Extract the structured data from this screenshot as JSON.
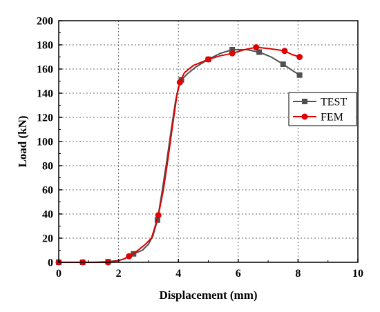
{
  "chart_data": {
    "type": "line",
    "xlabel": "Displacement (mm)",
    "ylabel": "Load (kN)",
    "xlim": [
      0,
      10
    ],
    "ylim": [
      0,
      200
    ],
    "x_ticks": [
      0,
      2,
      4,
      6,
      8,
      10
    ],
    "y_ticks": [
      0,
      20,
      40,
      60,
      80,
      100,
      120,
      140,
      160,
      180,
      200
    ],
    "grid": "dotted",
    "legend_position": "right",
    "series": [
      {
        "name": "TEST",
        "color": "#505050",
        "marker": "square",
        "x": [
          0,
          0.3,
          0.8,
          1.2,
          1.65,
          2.0,
          2.2,
          2.5,
          2.8,
          3.0,
          3.15,
          3.3,
          3.45,
          3.6,
          3.75,
          3.9,
          4.0,
          4.1,
          4.3,
          4.6,
          5.0,
          5.4,
          5.8,
          6.3,
          6.7,
          7.1,
          7.5,
          7.8,
          8.05
        ],
        "y": [
          0,
          0,
          0,
          0,
          0.5,
          1.5,
          3,
          7,
          10,
          15,
          22,
          35,
          58,
          82,
          108,
          133,
          145,
          151,
          156,
          162,
          168,
          173,
          176,
          176,
          174,
          170,
          164,
          159,
          155
        ],
        "marker_x": [
          0,
          0.8,
          1.65,
          2.5,
          3.3,
          4.1,
          5.0,
          5.8,
          6.7,
          7.5,
          8.05
        ],
        "marker_y": [
          0,
          0,
          0.5,
          7,
          35,
          151,
          168,
          176,
          174,
          164,
          155
        ]
      },
      {
        "name": "FEM",
        "color": "#e00000",
        "marker": "circle",
        "x": [
          0,
          0.3,
          0.8,
          1.2,
          1.65,
          2.0,
          2.2,
          2.35,
          2.6,
          2.9,
          3.1,
          3.2,
          3.33,
          3.5,
          3.65,
          3.8,
          3.95,
          4.05,
          4.2,
          4.5,
          5.0,
          5.4,
          5.8,
          6.2,
          6.6,
          7.0,
          7.3,
          7.55,
          7.8,
          8.05
        ],
        "y": [
          0,
          0,
          0,
          0,
          0,
          1.5,
          3,
          5,
          9,
          15,
          20,
          28,
          39,
          60,
          85,
          112,
          138,
          149,
          157,
          163,
          168,
          171,
          173,
          176,
          178,
          177,
          176,
          175,
          172,
          170
        ],
        "marker_x": [
          0,
          0.8,
          1.65,
          2.35,
          3.33,
          4.05,
          5.0,
          5.8,
          6.6,
          7.55,
          8.05
        ],
        "marker_y": [
          0,
          0,
          0,
          5,
          39,
          149,
          168,
          173,
          178,
          175,
          170
        ]
      }
    ]
  }
}
